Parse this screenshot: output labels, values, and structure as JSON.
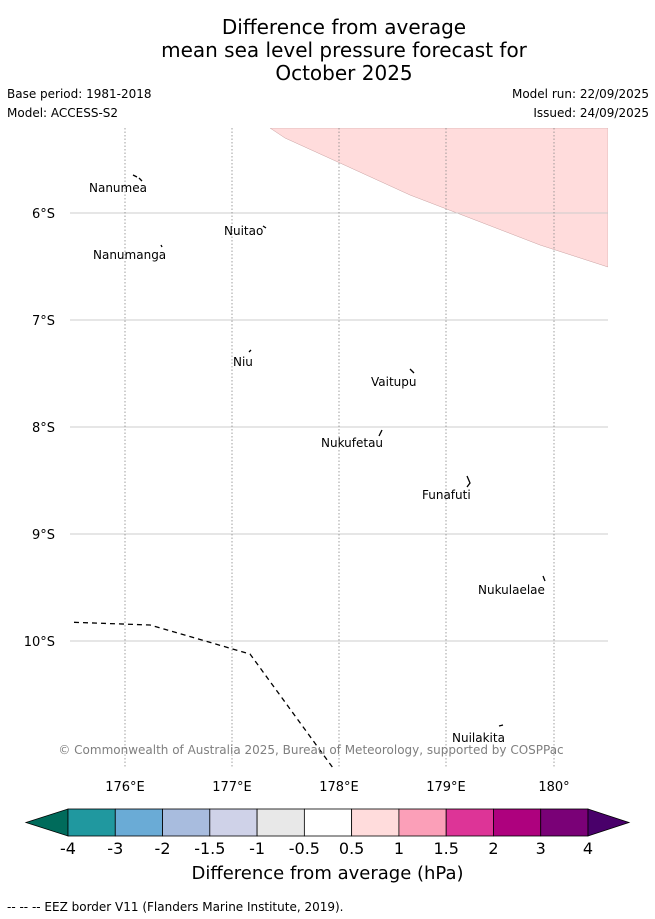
{
  "header": {
    "title_lines": [
      "Difference from average",
      "mean sea level pressure forecast for",
      "October 2025"
    ],
    "base_period": "Base period: 1981-2018",
    "model": "Model: ACCESS-S2",
    "model_run": "Model run: 22/09/2025",
    "issued": "Issued: 24/09/2025"
  },
  "map": {
    "lat_labels": [
      "6°S",
      "7°S",
      "8°S",
      "9°S",
      "10°S"
    ],
    "lon_labels": [
      "176°E",
      "177°E",
      "178°E",
      "179°E",
      "180°"
    ],
    "islands": [
      "Nanumea",
      "Nuitao",
      "Nanumanga",
      "Niu",
      "Vaitupu",
      "Nukufetau",
      "Funafuti",
      "Nukulaelae",
      "Nuilakita"
    ],
    "copyright": "© Commonwealth of Australia 2025, Bureau of Meteorology, supported by COSPPac",
    "anomaly_fill_color": "#ffdcdc",
    "eez_line_style": "dashed"
  },
  "colorbar": {
    "ticks": [
      "-4",
      "-3",
      "-2",
      "-1.5",
      "-1",
      "-0.5",
      "0.5",
      "1",
      "1.5",
      "2",
      "3",
      "4"
    ],
    "colors": [
      "#006b5b",
      "#20989f",
      "#6aabd6",
      "#a8bcde",
      "#cfd2e8",
      "#e8e8e8",
      "#ffffff",
      "#ffdcdc",
      "#fb9fb8",
      "#dd3497",
      "#ae017e",
      "#7a0177",
      "#49006a"
    ],
    "label": "Difference from average (hPa)"
  },
  "footnote": "--  --  -- EEZ border V11 (Flanders Marine Institute, 2019)."
}
